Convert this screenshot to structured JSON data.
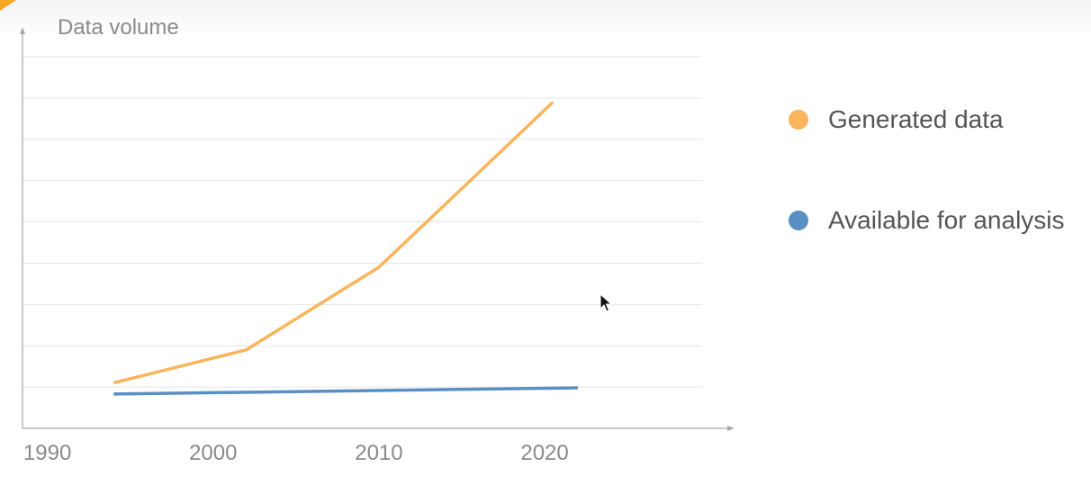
{
  "chart_data": {
    "type": "line",
    "ylabel": "Data volume",
    "xlabel": "",
    "x_ticks": [
      1990,
      2000,
      2010,
      2020
    ],
    "xlim": [
      1988.5,
      2029.5
    ],
    "ylim": [
      0,
      9
    ],
    "grid": true,
    "y_gridlines": [
      1,
      2,
      3,
      4,
      5,
      6,
      7,
      8,
      9
    ],
    "legend_position": "right",
    "series": [
      {
        "name": "Generated data",
        "color": "#f8b55c",
        "x": [
          1994,
          2002,
          2010,
          2020.5
        ],
        "y": [
          1.1,
          1.9,
          3.9,
          7.9
        ]
      },
      {
        "name": "Available for analysis",
        "color": "#5a8fc4",
        "x": [
          1994,
          2022
        ],
        "y": [
          0.83,
          0.98
        ]
      }
    ]
  },
  "colors": {
    "axis": "#a8a8a8",
    "grid": "#e6e6e6",
    "tick_text": "#8a8a8a",
    "accent": "#f5a623"
  },
  "icons": {
    "cursor": "mouse-pointer-icon"
  }
}
